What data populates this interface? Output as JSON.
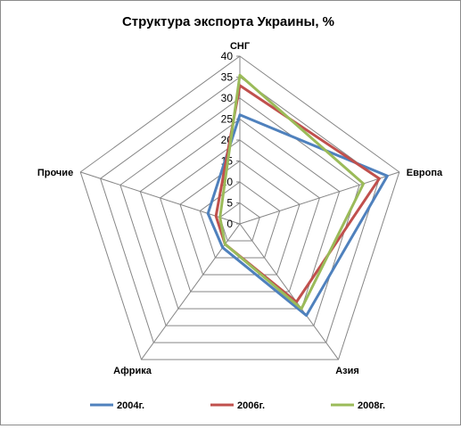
{
  "chart_data": {
    "type": "radar",
    "title": "Структура экспорта Украины, %",
    "categories": [
      "СНГ",
      "Европа",
      "Азия",
      "Африка",
      "Прочие"
    ],
    "series": [
      {
        "name": "2004г.",
        "color": "#4f81bd",
        "values": [
          26,
          37,
          27,
          7,
          8
        ]
      },
      {
        "name": "2006г.",
        "color": "#c0504d",
        "values": [
          33,
          35,
          23,
          6,
          6
        ]
      },
      {
        "name": "2008г.",
        "color": "#9bbb59",
        "values": [
          35.5,
          31,
          25,
          6,
          5
        ]
      }
    ],
    "rlim": [
      0,
      40
    ],
    "ticks": [
      "0",
      "5",
      "10",
      "15",
      "20",
      "25",
      "30",
      "35",
      "40"
    ],
    "grid": true,
    "legend_position": "bottom"
  }
}
